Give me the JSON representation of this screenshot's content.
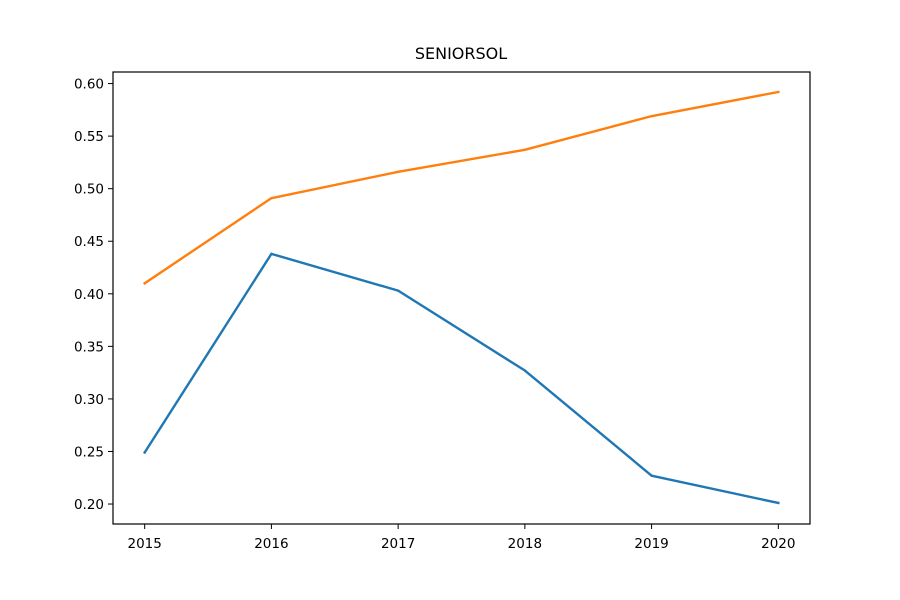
{
  "chart_data": {
    "type": "line",
    "title": "SENIORSOL",
    "xlabel": "",
    "ylabel": "",
    "x": [
      2015,
      2016,
      2017,
      2018,
      2019,
      2020
    ],
    "x_tick_labels": [
      "2015",
      "2016",
      "2017",
      "2018",
      "2019",
      "2020"
    ],
    "y_ticks": [
      0.2,
      0.25,
      0.3,
      0.35,
      0.4,
      0.45,
      0.5,
      0.55,
      0.6
    ],
    "y_tick_labels": [
      "0.20",
      "0.25",
      "0.30",
      "0.35",
      "0.40",
      "0.45",
      "0.50",
      "0.55",
      "0.60"
    ],
    "xlim": [
      2014.75,
      2020.25
    ],
    "ylim": [
      0.181,
      0.611
    ],
    "grid": false,
    "legend": "none",
    "series": [
      {
        "color": "#1f77b4",
        "values": [
          0.249,
          0.438,
          0.403,
          0.327,
          0.227,
          0.201
        ]
      },
      {
        "color": "#ff7f0e",
        "values": [
          0.41,
          0.491,
          0.516,
          0.537,
          0.569,
          0.592
        ]
      }
    ]
  }
}
